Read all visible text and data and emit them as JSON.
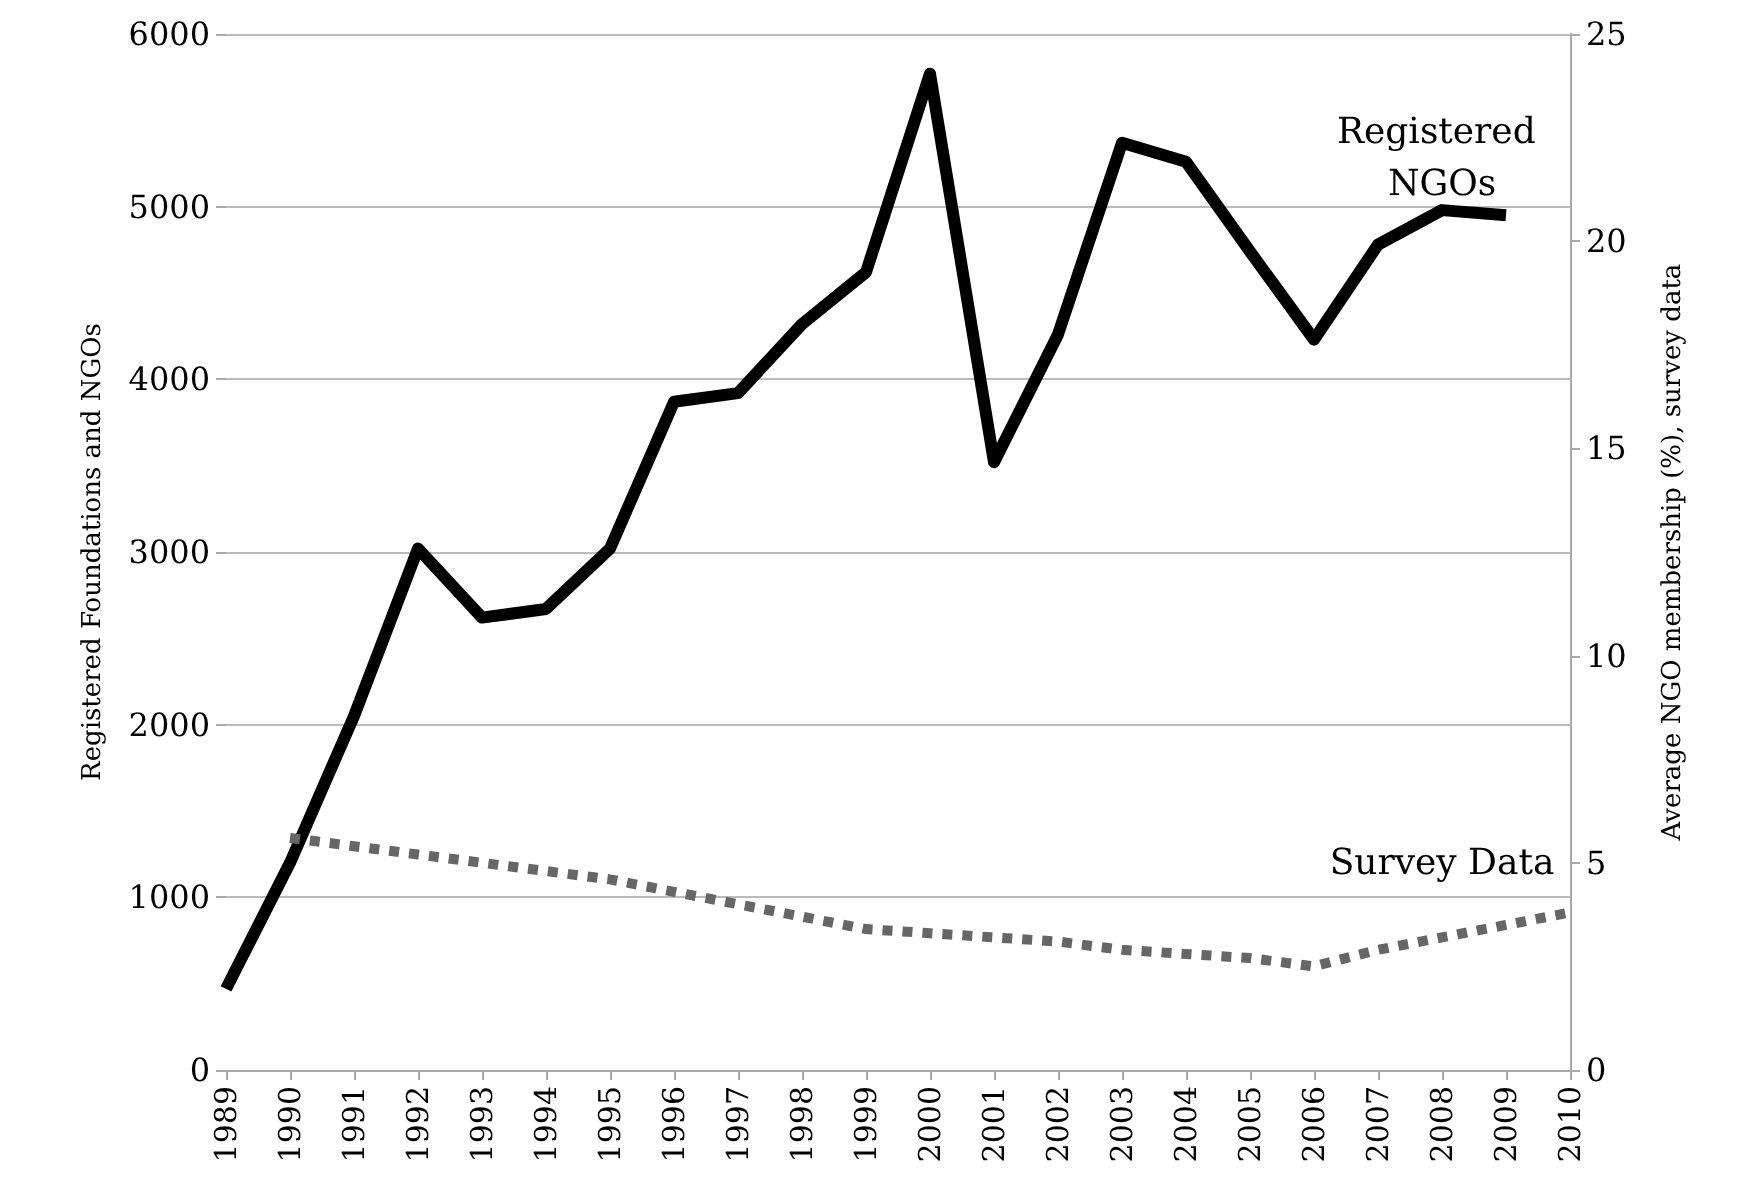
{
  "chart_data": {
    "type": "line",
    "ylabel": "Registered Foundations and NGOs",
    "y2label": "Average NGO membership (%), survey data",
    "categories": [
      "1989",
      "1990",
      "1991",
      "1992",
      "1993",
      "1994",
      "1995",
      "1996",
      "1997",
      "1998",
      "1999",
      "2000",
      "2001",
      "2002",
      "2003",
      "2004",
      "2005",
      "2006",
      "2007",
      "2008",
      "2009",
      "2010"
    ],
    "series": [
      {
        "name": "Registered NGOs",
        "color": "#000000",
        "line_style": "solid",
        "values": [
          470,
          1200,
          2050,
          3020,
          2620,
          2670,
          3020,
          3870,
          3920,
          4320,
          4620,
          5770,
          3520,
          4260,
          5370,
          5260,
          4740,
          4230,
          4780,
          4980,
          4950,
          null
        ]
      },
      {
        "name": "Survey Data",
        "color": "#666666",
        "line_style": "dotted",
        "axis": "y2",
        "values": [
          null,
          5.6,
          5.4,
          5.2,
          5.0,
          4.8,
          4.6,
          4.3,
          4.0,
          3.7,
          3.4,
          3.3,
          3.2,
          3.1,
          2.9,
          2.8,
          2.7,
          2.5,
          2.9,
          3.2,
          3.5,
          3.8
        ]
      }
    ],
    "ylim": [
      0,
      6000
    ],
    "yticks": [
      0,
      1000,
      2000,
      3000,
      4000,
      5000,
      6000
    ],
    "y2lim": [
      0,
      25
    ],
    "y2ticks": [
      0,
      5,
      10,
      15,
      20,
      25
    ],
    "grid": "y",
    "legend": false,
    "marker": "none"
  }
}
